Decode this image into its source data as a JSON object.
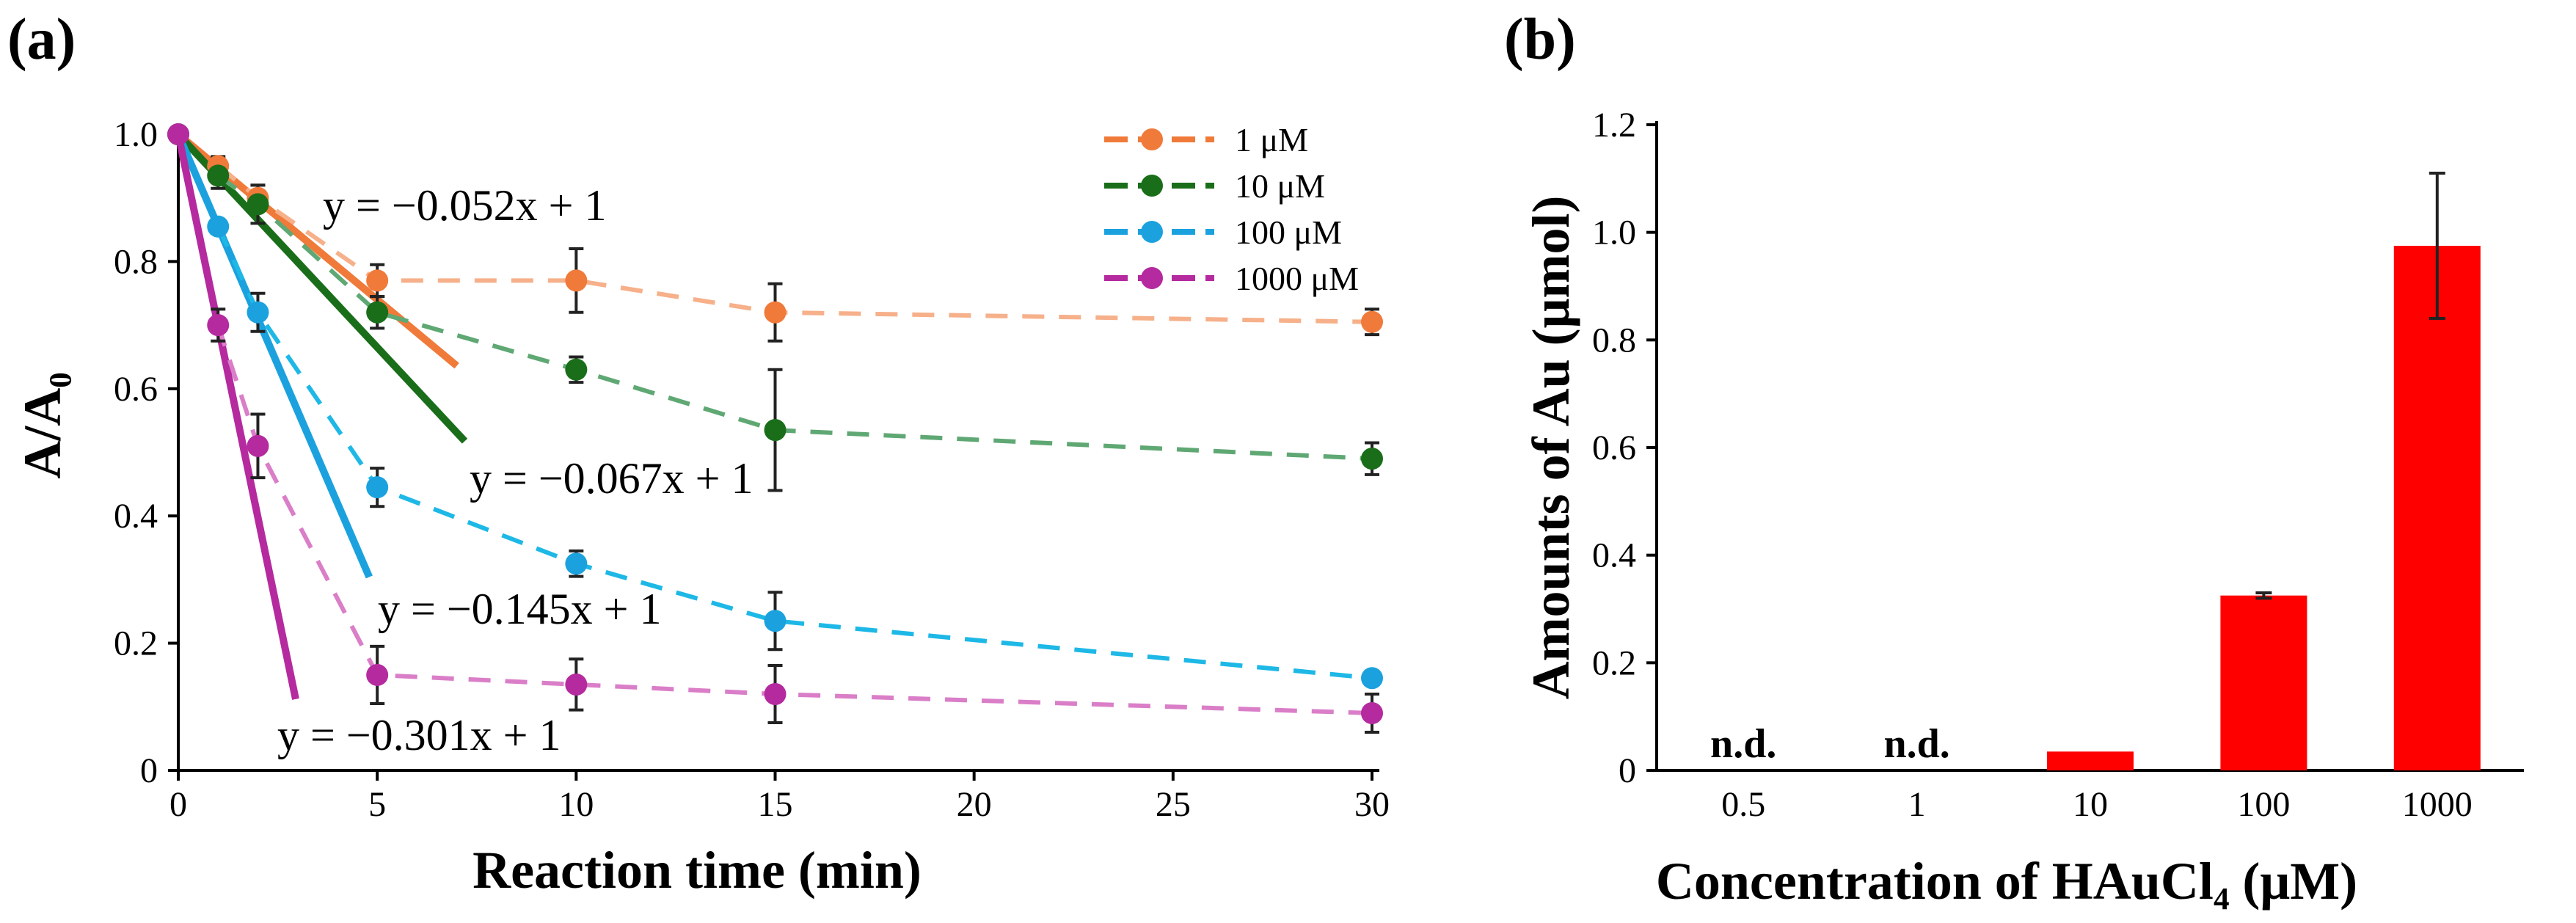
{
  "chart_data": [
    {
      "type": "line",
      "panel_label": "(a)",
      "xlabel": "Reaction time (min)",
      "ylabel": "A/A₀",
      "xlim": [
        0,
        30
      ],
      "ylim": [
        0,
        1.0
      ],
      "x_ticks": [
        "0",
        "5",
        "10",
        "15",
        "20",
        "25",
        "30"
      ],
      "y_ticks": [
        "0",
        "0.2",
        "0.4",
        "0.6",
        "0.8",
        "1.0"
      ],
      "x_tick_values": [
        0,
        5,
        10,
        15,
        20,
        25,
        30
      ],
      "y_tick_values": [
        0,
        0.2,
        0.4,
        0.6,
        0.8,
        1.0
      ],
      "legend_position": "top-right",
      "series": [
        {
          "name": "1 μM",
          "color": "#F07A3A",
          "light_color": "#F6B08A",
          "x": [
            0,
            1,
            2,
            5,
            10,
            15,
            30
          ],
          "y": [
            1.0,
            0.95,
            0.9,
            0.77,
            0.77,
            0.72,
            0.705
          ],
          "err": [
            0,
            0.015,
            0.02,
            0.025,
            0.05,
            0.045,
            0.02
          ],
          "fit": {
            "label": "y = −0.052x + 1",
            "slope": -0.052,
            "intercept": 1,
            "x_end": 7.0
          }
        },
        {
          "name": "10 μM",
          "color": "#1A6E1A",
          "light_color": "#5FA874",
          "x": [
            0,
            1,
            2,
            5,
            10,
            15,
            30
          ],
          "y": [
            1.0,
            0.935,
            0.89,
            0.72,
            0.63,
            0.535,
            0.49
          ],
          "err": [
            0,
            0.02,
            0.03,
            0.025,
            0.02,
            0.095,
            0.025
          ],
          "fit": {
            "label": "y = −0.067x + 1",
            "slope": -0.067,
            "intercept": 1,
            "x_end": 7.2
          }
        },
        {
          "name": "100 μM",
          "color": "#1BA2DE",
          "light_color": "#1EB8E6",
          "x": [
            0,
            1,
            2,
            5,
            10,
            15,
            30
          ],
          "y": [
            1.0,
            0.855,
            0.72,
            0.445,
            0.325,
            0.235,
            0.145
          ],
          "err": [
            0,
            0.01,
            0.03,
            0.03,
            0.02,
            0.045,
            0.01
          ],
          "fit": {
            "label": "y = −0.145x + 1",
            "slope": -0.145,
            "intercept": 1,
            "x_end": 4.8
          }
        },
        {
          "name": "1000 μM",
          "color": "#B52A9E",
          "light_color": "#DA7EC8",
          "x": [
            0,
            1,
            2,
            5,
            10,
            15,
            30
          ],
          "y": [
            1.0,
            0.7,
            0.51,
            0.15,
            0.135,
            0.12,
            0.09
          ],
          "err": [
            0,
            0.025,
            0.05,
            0.045,
            0.04,
            0.045,
            0.03
          ],
          "fit": {
            "label": "y = −0.301x + 1",
            "slope": -0.301,
            "intercept": 1,
            "x_end": 2.95
          }
        }
      ]
    },
    {
      "type": "bar",
      "panel_label": "(b)",
      "xlabel": "Concentration of HAuCl₄ (μM)",
      "ylabel": "Amounts of Au (μmol)",
      "ylim": [
        0,
        1.2
      ],
      "y_ticks": [
        "0",
        "0.2",
        "0.4",
        "0.6",
        "0.8",
        "1.0",
        "1.2"
      ],
      "y_tick_values": [
        0,
        0.2,
        0.4,
        0.6,
        0.8,
        1.0,
        1.2
      ],
      "categories": [
        "0.5",
        "1",
        "10",
        "100",
        "1000"
      ],
      "values": [
        0,
        0,
        0.035,
        0.325,
        0.975
      ],
      "errors": [
        0,
        0,
        0,
        0.005,
        0.135
      ],
      "annotations": [
        "n.d.",
        "n.d.",
        "",
        "",
        ""
      ],
      "bar_color": "#FF0000"
    }
  ]
}
